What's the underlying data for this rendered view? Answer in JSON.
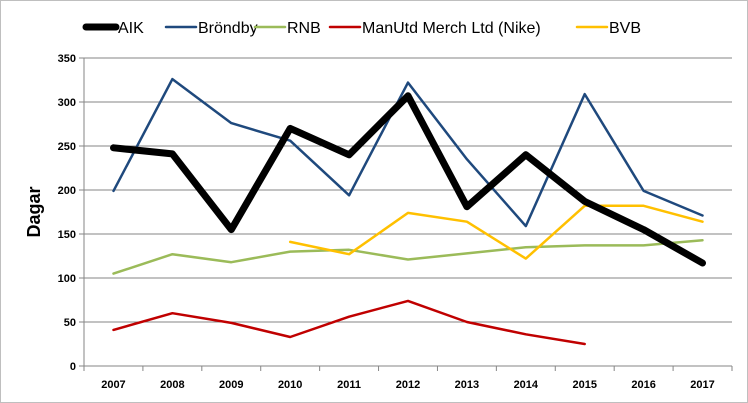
{
  "chart_data": {
    "type": "line",
    "title": "",
    "xlabel": "",
    "ylabel": "Dagar",
    "ylim": [
      0,
      350
    ],
    "yticks": [
      0,
      50,
      100,
      150,
      200,
      250,
      300,
      350
    ],
    "grid": true,
    "legend_position": "top",
    "categories": [
      "2007",
      "2008",
      "2009",
      "2010",
      "2011",
      "2012",
      "2013",
      "2014",
      "2015",
      "2016",
      "2017"
    ],
    "series": [
      {
        "name": "AIK",
        "color": "#000000",
        "line_style": "thick",
        "values": [
          248,
          241,
          155,
          270,
          240,
          307,
          181,
          240,
          187,
          155,
          117
        ]
      },
      {
        "name": "Bröndby",
        "color": "#1F497D",
        "line_style": "normal",
        "values": [
          199,
          326,
          276,
          256,
          194,
          322,
          235,
          159,
          309,
          199,
          171
        ]
      },
      {
        "name": "RNB",
        "color": "#9BBB59",
        "line_style": "normal",
        "values": [
          105,
          127,
          118,
          130,
          132,
          121,
          128,
          135,
          137,
          137,
          143
        ]
      },
      {
        "name": "ManUtd Merch Ltd (Nike)",
        "color": "#C00000",
        "line_style": "normal",
        "values": [
          41,
          60,
          49,
          33,
          56,
          74,
          50,
          36,
          25,
          null,
          null
        ]
      },
      {
        "name": "BVB",
        "color": "#FFC000",
        "line_style": "normal",
        "values": [
          null,
          null,
          null,
          141,
          127,
          174,
          164,
          122,
          182,
          182,
          164
        ]
      }
    ]
  }
}
